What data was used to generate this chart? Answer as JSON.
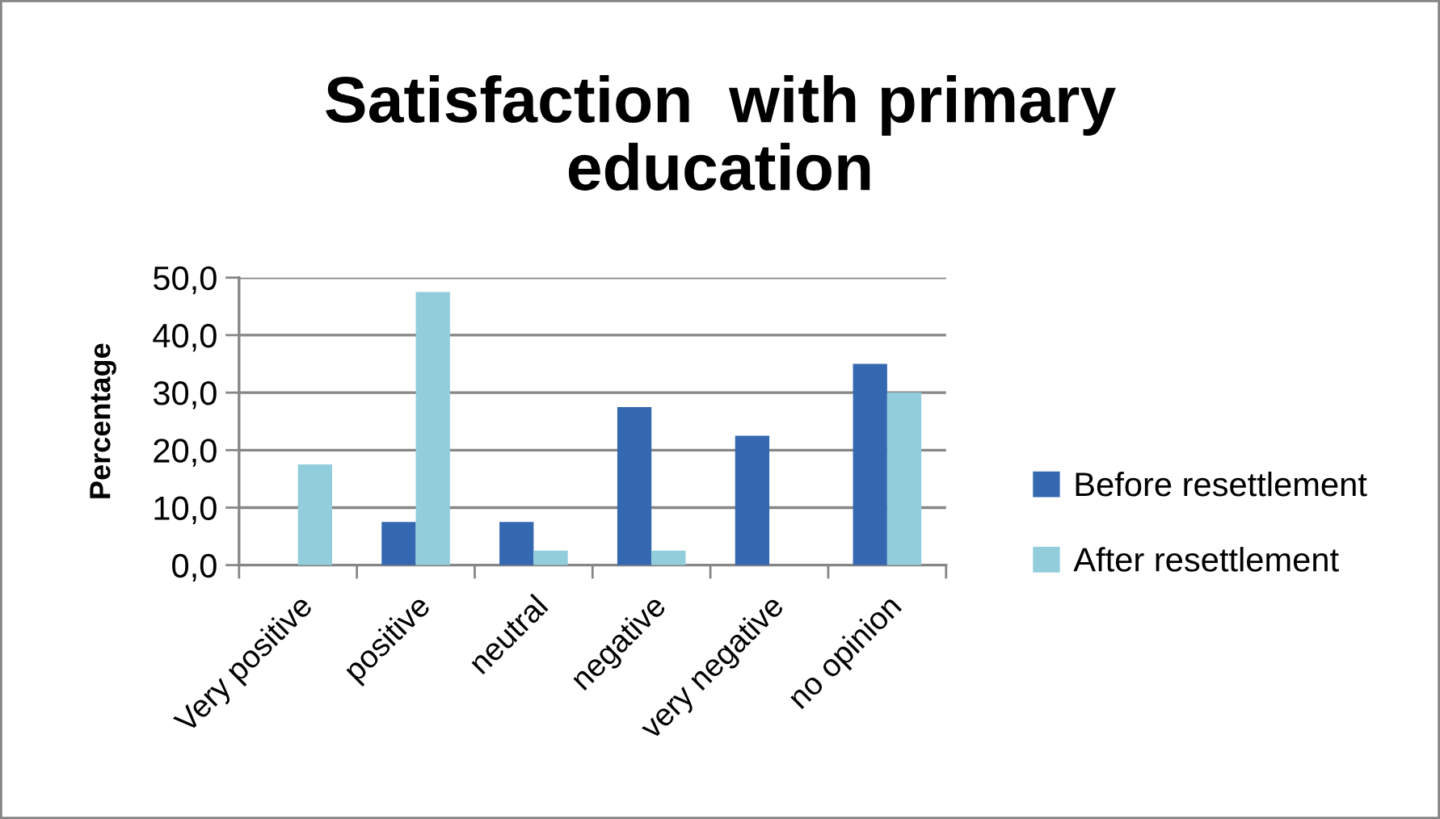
{
  "chart_data": {
    "type": "bar",
    "title": "Satisfaction  with primary\neducation",
    "ylabel": "Percentage",
    "categories": [
      "Very positive",
      "positive",
      "neutral",
      "negative",
      "very negative",
      "no opinion"
    ],
    "series": [
      {
        "name": "Before resettlement",
        "color": "#3468b0",
        "values": [
          null,
          7.5,
          7.5,
          27.5,
          22.5,
          35.0
        ]
      },
      {
        "name": "After resettlement",
        "color": "#92cddc",
        "values": [
          17.5,
          47.5,
          2.5,
          2.5,
          null,
          30.0
        ]
      }
    ],
    "ylim": [
      0,
      50
    ],
    "yticks": [
      {
        "value": 0,
        "label": "0,0"
      },
      {
        "value": 10,
        "label": "10,0"
      },
      {
        "value": 20,
        "label": "20,0"
      },
      {
        "value": 30,
        "label": "30,0"
      },
      {
        "value": 40,
        "label": "40,0"
      },
      {
        "value": 50,
        "label": "50,0"
      }
    ],
    "grid": "y",
    "legend": "right"
  }
}
